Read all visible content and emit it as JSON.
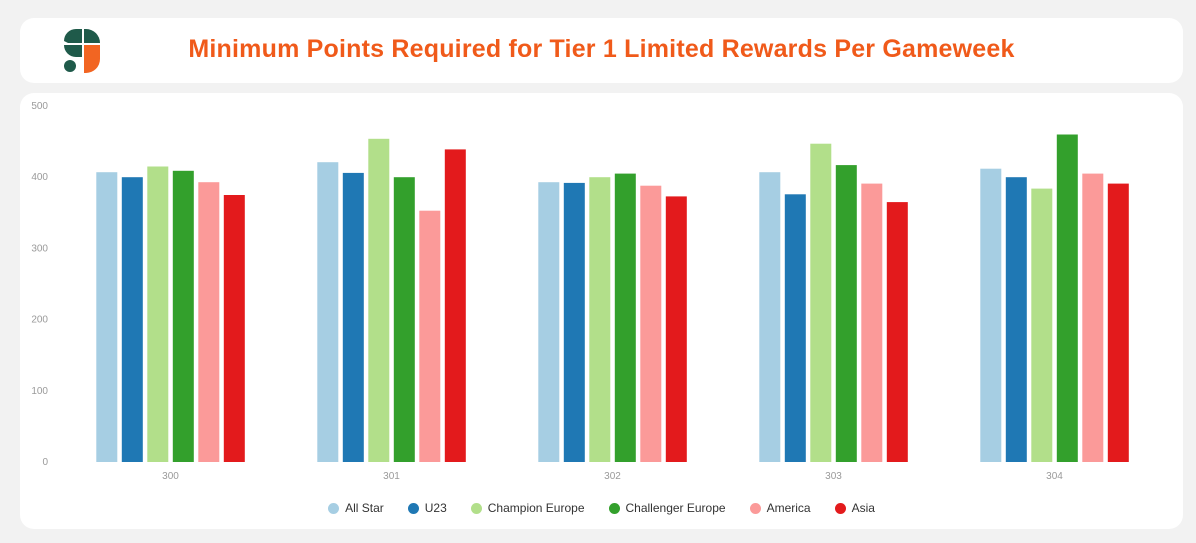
{
  "header": {
    "title": "Minimum Points Required for Tier 1 Limited Rewards Per Gameweek",
    "logo_icon": "s-brand-logo-icon"
  },
  "colors": {
    "title": "#f05a1a",
    "logo_green": "#1f5a4a",
    "logo_orange": "#f26522"
  },
  "chart_data": {
    "type": "bar",
    "title": "Minimum Points Required for Tier 1 Limited Rewards Per Gameweek",
    "xlabel": "",
    "ylabel": "",
    "ylim": [
      0,
      500
    ],
    "yticks": [
      0,
      100,
      200,
      300,
      400,
      500
    ],
    "grid": false,
    "legend_position": "bottom",
    "categories": [
      "300",
      "301",
      "302",
      "303",
      "304"
    ],
    "series": [
      {
        "name": "All Star",
        "color": "#a6cee3",
        "values": [
          407,
          421,
          393,
          407,
          412
        ]
      },
      {
        "name": "U23",
        "color": "#1f78b4",
        "values": [
          400,
          406,
          392,
          376,
          400
        ]
      },
      {
        "name": "Champion Europe",
        "color": "#b2df8a",
        "values": [
          415,
          454,
          400,
          447,
          384
        ]
      },
      {
        "name": "Challenger Europe",
        "color": "#33a02c",
        "values": [
          409,
          400,
          405,
          417,
          460
        ]
      },
      {
        "name": "America",
        "color": "#fb9a99",
        "values": [
          393,
          353,
          388,
          391,
          405
        ]
      },
      {
        "name": "Asia",
        "color": "#e31a1c",
        "values": [
          375,
          439,
          373,
          365,
          391
        ]
      }
    ]
  }
}
